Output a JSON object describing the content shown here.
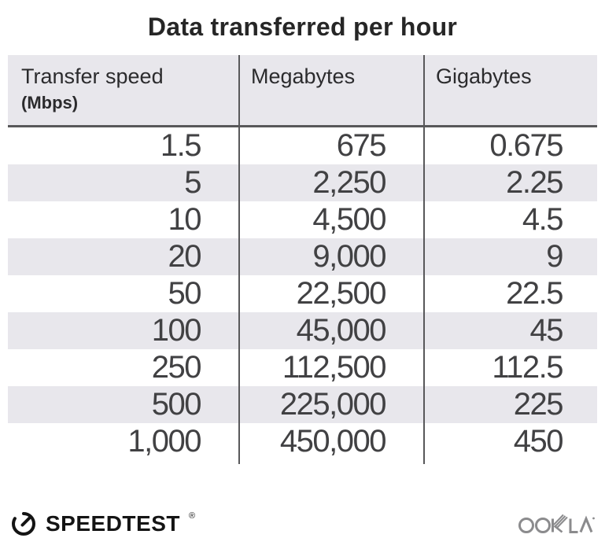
{
  "title": "Data transferred per hour",
  "table": {
    "columns": [
      {
        "label": "Transfer speed",
        "sublabel": "(Mbps)"
      },
      {
        "label": "Megabytes"
      },
      {
        "label": "Gigabytes"
      }
    ],
    "rows": [
      [
        "1.5",
        "675",
        "0.675"
      ],
      [
        "5",
        "2,250",
        "2.25"
      ],
      [
        "10",
        "4,500",
        "4.5"
      ],
      [
        "20",
        "9,000",
        "9"
      ],
      [
        "50",
        "22,500",
        "22.5"
      ],
      [
        "100",
        "45,000",
        "45"
      ],
      [
        "250",
        "112,500",
        "112.5"
      ],
      [
        "500",
        "225,000",
        "225"
      ],
      [
        "1,000",
        "450,000",
        "450"
      ]
    ]
  },
  "footer": {
    "brand": "SPEEDTEST",
    "brand_mark": "®",
    "partner": "OOKLA"
  },
  "colors": {
    "stripe_bg": "#e8e7ec",
    "header_bg": "#e8e7ec",
    "divider": "#58585a",
    "title_text": "#262626",
    "number_text": "#414143",
    "brand_black": "#141414",
    "ookla_gray": "#8b8b8d"
  },
  "chart_data": {
    "type": "table",
    "title": "Data transferred per hour",
    "columns": [
      "Transfer speed (Mbps)",
      "Megabytes",
      "Gigabytes"
    ],
    "rows": [
      [
        1.5,
        675,
        0.675
      ],
      [
        5,
        2250,
        2.25
      ],
      [
        10,
        4500,
        4.5
      ],
      [
        20,
        9000,
        9
      ],
      [
        50,
        22500,
        22.5
      ],
      [
        100,
        45000,
        45
      ],
      [
        250,
        112500,
        112.5
      ],
      [
        500,
        225000,
        225
      ],
      [
        1000,
        450000,
        450
      ]
    ]
  }
}
